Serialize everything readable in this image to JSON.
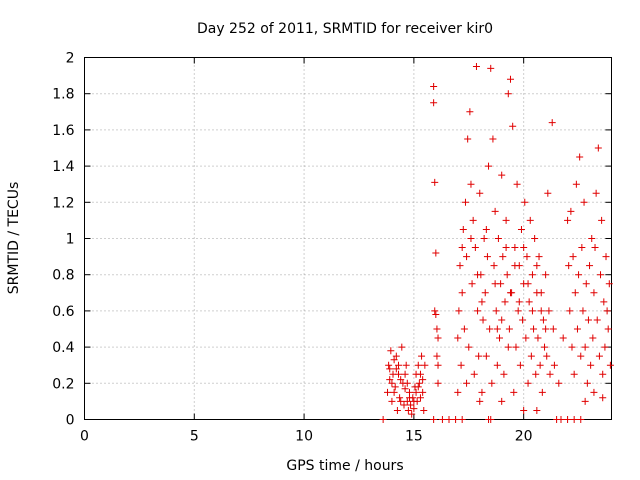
{
  "chart_data": {
    "type": "scatter",
    "title": "Day 252 of 2011, SRMTID for receiver kir0",
    "xlabel": "GPS time / hours",
    "ylabel": "SRMTID / TECUs",
    "xlim": [
      0,
      24
    ],
    "ylim": [
      0,
      2
    ],
    "xticks": [
      "0",
      "5",
      "10",
      "15",
      "20"
    ],
    "xtick_values": [
      0,
      5,
      10,
      15,
      20
    ],
    "yticks": [
      "0",
      "0.2",
      "0.4",
      "0.6",
      "0.8",
      "1",
      "1.2",
      "1.4",
      "1.6",
      "1.8",
      "2"
    ],
    "ytick_values": [
      0,
      0.2,
      0.4,
      0.6,
      0.8,
      1.0,
      1.2,
      1.4,
      1.6,
      1.8,
      2.0
    ],
    "grid": true,
    "marker": "+",
    "color": "#e00000",
    "series": [
      {
        "name": "SRMTID",
        "points": [
          [
            13.6,
            0.0
          ],
          [
            13.8,
            0.15
          ],
          [
            13.85,
            0.3
          ],
          [
            13.9,
            0.22
          ],
          [
            13.95,
            0.38
          ],
          [
            14.0,
            0.1
          ],
          [
            14.05,
            0.25
          ],
          [
            14.1,
            0.33
          ],
          [
            14.15,
            0.18
          ],
          [
            14.2,
            0.28
          ],
          [
            14.25,
            0.05
          ],
          [
            14.3,
            0.3
          ],
          [
            14.35,
            0.12
          ],
          [
            14.4,
            0.22
          ],
          [
            14.45,
            0.4
          ],
          [
            14.5,
            0.2
          ],
          [
            14.55,
            0.08
          ],
          [
            14.6,
            0.17
          ],
          [
            14.65,
            0.3
          ],
          [
            14.7,
            0.1
          ],
          [
            14.75,
            0.05
          ],
          [
            14.8,
            0.15
          ],
          [
            14.85,
            0.08
          ],
          [
            14.9,
            0.03
          ],
          [
            14.95,
            0.12
          ],
          [
            15.0,
            0.06
          ],
          [
            15.05,
            0.18
          ],
          [
            15.1,
            0.25
          ],
          [
            15.15,
            0.1
          ],
          [
            15.2,
            0.3
          ],
          [
            15.25,
            0.2
          ],
          [
            15.3,
            0.12
          ],
          [
            15.35,
            0.35
          ],
          [
            15.4,
            0.22
          ],
          [
            15.45,
            0.05
          ],
          [
            15.5,
            0.3
          ],
          [
            13.9,
            0.28
          ],
          [
            14.0,
            0.2
          ],
          [
            14.1,
            0.15
          ],
          [
            14.2,
            0.35
          ],
          [
            14.3,
            0.25
          ],
          [
            14.4,
            0.1
          ],
          [
            14.6,
            0.25
          ],
          [
            14.7,
            0.2
          ],
          [
            14.8,
            0.12
          ],
          [
            15.0,
            0.1
          ],
          [
            15.1,
            0.15
          ],
          [
            15.2,
            0.18
          ],
          [
            15.3,
            0.25
          ],
          [
            15.4,
            0.15
          ],
          [
            15.9,
            1.84
          ],
          [
            15.9,
            1.75
          ],
          [
            15.95,
            1.31
          ],
          [
            16.0,
            0.92
          ],
          [
            15.95,
            0.6
          ],
          [
            16.0,
            0.58
          ],
          [
            16.05,
            0.5
          ],
          [
            16.1,
            0.45
          ],
          [
            16.05,
            0.35
          ],
          [
            16.1,
            0.3
          ],
          [
            16.1,
            0.2
          ],
          [
            15.9,
            0.0
          ],
          [
            16.3,
            0.0
          ],
          [
            16.6,
            0.0
          ],
          [
            16.9,
            0.0
          ],
          [
            17.2,
            0.0
          ],
          [
            18.4,
            0.0
          ],
          [
            18.5,
            0.0
          ],
          [
            17.0,
            0.45
          ],
          [
            17.05,
            0.6
          ],
          [
            17.1,
            0.85
          ],
          [
            17.15,
            0.3
          ],
          [
            17.2,
            0.7
          ],
          [
            17.25,
            1.05
          ],
          [
            17.3,
            0.5
          ],
          [
            17.35,
            1.2
          ],
          [
            17.4,
            0.9
          ],
          [
            17.45,
            1.55
          ],
          [
            17.5,
            0.4
          ],
          [
            17.55,
            1.7
          ],
          [
            17.6,
            1.3
          ],
          [
            17.65,
            0.75
          ],
          [
            17.7,
            1.1
          ],
          [
            17.75,
            0.25
          ],
          [
            17.8,
            0.95
          ],
          [
            17.85,
            1.95
          ],
          [
            17.9,
            0.6
          ],
          [
            17.95,
            0.35
          ],
          [
            18.0,
            1.25
          ],
          [
            18.05,
            0.8
          ],
          [
            18.1,
            0.15
          ],
          [
            18.15,
            0.55
          ],
          [
            18.2,
            1.0
          ],
          [
            18.25,
            0.7
          ],
          [
            18.3,
            0.35
          ],
          [
            18.35,
            0.9
          ],
          [
            18.4,
            1.4
          ],
          [
            18.45,
            0.5
          ],
          [
            18.5,
            1.94
          ],
          [
            18.55,
            0.2
          ],
          [
            18.6,
            1.55
          ],
          [
            18.65,
            0.85
          ],
          [
            18.7,
            1.15
          ],
          [
            18.75,
            0.6
          ],
          [
            18.8,
            0.3
          ],
          [
            18.85,
            1.0
          ],
          [
            18.9,
            0.45
          ],
          [
            18.95,
            0.75
          ],
          [
            19.0,
            1.35
          ],
          [
            19.05,
            0.9
          ],
          [
            19.1,
            0.25
          ],
          [
            19.15,
            0.65
          ],
          [
            19.2,
            1.1
          ],
          [
            19.25,
            0.8
          ],
          [
            19.3,
            1.8
          ],
          [
            19.35,
            0.5
          ],
          [
            19.4,
            1.88
          ],
          [
            19.45,
            0.7
          ],
          [
            19.5,
            1.62
          ],
          [
            19.55,
            0.15
          ],
          [
            19.6,
            0.95
          ],
          [
            19.65,
            0.4
          ],
          [
            19.7,
            1.3
          ],
          [
            19.75,
            0.6
          ],
          [
            19.8,
            0.85
          ],
          [
            19.85,
            0.3
          ],
          [
            19.9,
            1.05
          ],
          [
            19.95,
            0.55
          ],
          [
            20.0,
            0.75
          ],
          [
            20.05,
            1.2
          ],
          [
            20.1,
            0.45
          ],
          [
            20.15,
            0.9
          ],
          [
            20.2,
            0.2
          ],
          [
            20.25,
            0.65
          ],
          [
            20.3,
            1.1
          ],
          [
            20.35,
            0.35
          ],
          [
            20.4,
            0.8
          ],
          [
            20.45,
            0.5
          ],
          [
            20.5,
            1.0
          ],
          [
            20.55,
            0.25
          ],
          [
            20.6,
            0.7
          ],
          [
            20.65,
            0.45
          ],
          [
            20.7,
            0.9
          ],
          [
            20.75,
            0.3
          ],
          [
            20.8,
            0.6
          ],
          [
            20.85,
            0.15
          ],
          [
            20.9,
            0.55
          ],
          [
            20.95,
            0.4
          ],
          [
            21.0,
            0.8
          ],
          [
            21.05,
            0.35
          ],
          [
            21.1,
            1.25
          ],
          [
            21.15,
            0.6
          ],
          [
            21.2,
            0.25
          ],
          [
            21.3,
            1.64
          ],
          [
            21.35,
            0.5
          ],
          [
            21.4,
            0.3
          ],
          [
            21.5,
            0.0
          ],
          [
            21.7,
            0.0
          ],
          [
            22.0,
            0.0
          ],
          [
            22.3,
            0.0
          ],
          [
            22.6,
            0.0
          ],
          [
            22.0,
            1.1
          ],
          [
            22.05,
            0.85
          ],
          [
            22.1,
            0.6
          ],
          [
            22.15,
            1.15
          ],
          [
            22.2,
            0.4
          ],
          [
            22.25,
            0.9
          ],
          [
            22.3,
            0.25
          ],
          [
            22.35,
            0.7
          ],
          [
            22.4,
            1.3
          ],
          [
            22.45,
            0.5
          ],
          [
            22.5,
            0.8
          ],
          [
            22.55,
            1.45
          ],
          [
            22.6,
            0.35
          ],
          [
            22.65,
            0.95
          ],
          [
            22.7,
            0.6
          ],
          [
            22.75,
            1.2
          ],
          [
            22.8,
            0.4
          ],
          [
            22.85,
            0.75
          ],
          [
            22.9,
            0.2
          ],
          [
            22.95,
            0.55
          ],
          [
            23.0,
            0.85
          ],
          [
            23.05,
            0.3
          ],
          [
            23.1,
            1.0
          ],
          [
            23.15,
            0.45
          ],
          [
            23.2,
            0.7
          ],
          [
            23.25,
            0.95
          ],
          [
            23.3,
            1.25
          ],
          [
            23.35,
            0.55
          ],
          [
            23.4,
            1.5
          ],
          [
            23.45,
            0.35
          ],
          [
            23.5,
            0.8
          ],
          [
            23.55,
            1.1
          ],
          [
            23.6,
            0.25
          ],
          [
            23.65,
            0.65
          ],
          [
            23.7,
            0.4
          ],
          [
            23.75,
            0.9
          ],
          [
            23.8,
            0.6
          ],
          [
            23.85,
            0.5
          ],
          [
            23.9,
            0.75
          ],
          [
            23.95,
            0.3
          ],
          [
            17.2,
            0.95
          ],
          [
            17.6,
            1.0
          ],
          [
            17.9,
            0.8
          ],
          [
            18.1,
            0.65
          ],
          [
            18.3,
            1.05
          ],
          [
            18.7,
            0.75
          ],
          [
            19.0,
            0.55
          ],
          [
            19.2,
            0.95
          ],
          [
            19.4,
            0.7
          ],
          [
            19.6,
            0.85
          ],
          [
            19.8,
            0.65
          ],
          [
            20.0,
            0.95
          ],
          [
            20.2,
            0.75
          ],
          [
            20.4,
            0.6
          ],
          [
            20.6,
            0.85
          ],
          [
            20.8,
            0.7
          ],
          [
            21.0,
            0.5
          ],
          [
            19.3,
            0.4
          ],
          [
            18.8,
            0.5
          ],
          [
            17.4,
            0.2
          ],
          [
            17.0,
            0.15
          ],
          [
            18.0,
            0.1
          ],
          [
            19.0,
            0.1
          ],
          [
            20.0,
            0.05
          ],
          [
            20.6,
            0.05
          ],
          [
            21.8,
            0.45
          ],
          [
            21.6,
            0.2
          ],
          [
            22.8,
            0.1
          ],
          [
            23.2,
            0.15
          ],
          [
            23.6,
            0.12
          ]
        ]
      }
    ]
  }
}
